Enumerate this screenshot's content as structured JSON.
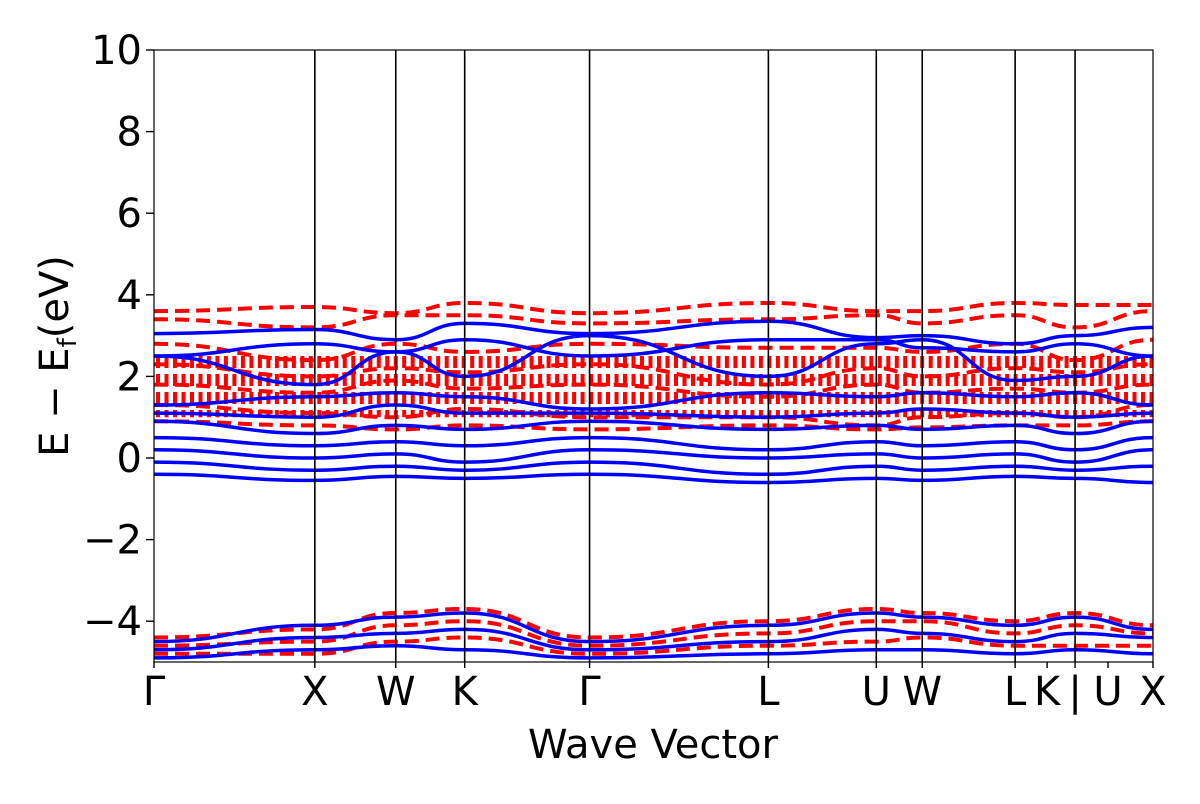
{
  "chart_data": {
    "type": "line",
    "title": "",
    "xlabel": "Wave Vector",
    "ylabel_main": "E − E",
    "ylabel_sub": "f",
    "ylabel_unit": "(eV)",
    "ylim": [
      -5,
      10
    ],
    "yticks": [
      -4,
      -2,
      0,
      2,
      4,
      6,
      8,
      10
    ],
    "ytick_labels": [
      "−4",
      "−2",
      "0",
      "2",
      "4",
      "6",
      "8",
      "10"
    ],
    "x_range": [
      0,
      1
    ],
    "kpoint_ticks": [
      {
        "label": "Γ",
        "x": 0.0
      },
      {
        "label": "X",
        "x": 0.161
      },
      {
        "label": "W",
        "x": 0.242
      },
      {
        "label": "K",
        "x": 0.311
      },
      {
        "label": "Γ",
        "x": 0.436
      },
      {
        "label": "L",
        "x": 0.615
      },
      {
        "label": "U",
        "x": 0.723
      },
      {
        "label": "W",
        "x": 0.769
      },
      {
        "label": "L",
        "x": 0.862
      },
      {
        "label": "K",
        "x": 0.894
      },
      {
        "label": "|",
        "x": 0.922
      },
      {
        "label": "U",
        "x": 0.955
      },
      {
        "label": "X",
        "x": 1.0
      }
    ],
    "vertical_lines_x": [
      0.161,
      0.242,
      0.311,
      0.436,
      0.615,
      0.723,
      0.769,
      0.862,
      0.922
    ],
    "series": [
      {
        "style": "dashed",
        "color": "#ff0000",
        "bands": [
          {
            "x": [
              0,
              0.161,
              0.242,
              0.311,
              0.436,
              0.615,
              0.723,
              0.769,
              0.862,
              0.922,
              1.0
            ],
            "y": [
              3.6,
              3.7,
              3.55,
              3.8,
              3.55,
              3.8,
              3.6,
              3.6,
              3.8,
              3.75,
              3.75
            ]
          },
          {
            "x": [
              0,
              0.161,
              0.242,
              0.311,
              0.436,
              0.615,
              0.723,
              0.769,
              0.862,
              0.922,
              1.0
            ],
            "y": [
              3.4,
              3.2,
              3.5,
              3.5,
              3.3,
              3.4,
              3.5,
              3.3,
              3.5,
              3.2,
              3.6
            ]
          },
          {
            "x": [
              0,
              0.161,
              0.242,
              0.311,
              0.436,
              0.615,
              0.723,
              0.769,
              0.862,
              0.922,
              1.0
            ],
            "y": [
              2.8,
              2.4,
              2.8,
              2.6,
              2.8,
              2.7,
              2.7,
              2.6,
              2.8,
              2.4,
              2.9
            ]
          },
          {
            "x": [
              0,
              0.161,
              0.242,
              0.311,
              0.436,
              0.615,
              0.723,
              0.769,
              0.862,
              0.922,
              1.0
            ],
            "y": [
              2.3,
              2.0,
              2.2,
              2.1,
              2.3,
              1.8,
              2.2,
              2.0,
              2.2,
              2.1,
              2.3
            ]
          },
          {
            "x": [
              0,
              0.161,
              0.242,
              0.311,
              0.436,
              0.615,
              0.723,
              0.769,
              0.862,
              0.922,
              1.0
            ],
            "y": [
              1.8,
              1.6,
              1.9,
              1.7,
              1.8,
              1.5,
              1.8,
              1.6,
              1.7,
              1.6,
              1.8
            ]
          },
          {
            "x": [
              0,
              0.161,
              0.242,
              0.311,
              0.436,
              0.615,
              0.723,
              0.769,
              0.862,
              0.922,
              1.0
            ],
            "y": [
              1.3,
              1.1,
              1.0,
              1.2,
              1.0,
              1.0,
              0.8,
              1.0,
              1.1,
              1.0,
              1.3
            ]
          },
          {
            "x": [
              0,
              0.161,
              0.242,
              0.311,
              0.436,
              0.615,
              0.723,
              0.769,
              0.862,
              0.922,
              1.0
            ],
            "y": [
              0.9,
              0.8,
              0.7,
              0.8,
              0.7,
              0.8,
              0.7,
              0.75,
              0.8,
              0.8,
              0.9
            ]
          },
          {
            "x": [
              0,
              0.161,
              0.242,
              0.311,
              0.436,
              0.615,
              0.723,
              0.769,
              0.862,
              0.922,
              1.0
            ],
            "y": [
              -4.4,
              -4.2,
              -3.8,
              -3.7,
              -4.4,
              -4.0,
              -3.7,
              -3.8,
              -4.0,
              -3.8,
              -4.1
            ]
          },
          {
            "x": [
              0,
              0.161,
              0.242,
              0.311,
              0.436,
              0.615,
              0.723,
              0.769,
              0.862,
              0.922,
              1.0
            ],
            "y": [
              -4.6,
              -4.5,
              -4.1,
              -4.0,
              -4.6,
              -4.3,
              -4.0,
              -4.0,
              -4.3,
              -4.1,
              -4.3
            ]
          },
          {
            "x": [
              0,
              0.161,
              0.242,
              0.311,
              0.436,
              0.615,
              0.723,
              0.769,
              0.862,
              0.922,
              1.0
            ],
            "y": [
              -4.8,
              -4.8,
              -4.5,
              -4.4,
              -4.8,
              -4.6,
              -4.5,
              -4.4,
              -4.6,
              -4.6,
              -4.6
            ]
          }
        ]
      },
      {
        "style": "solid",
        "color": "#0000ff",
        "bands": [
          {
            "x": [
              0,
              0.161,
              0.242,
              0.311,
              0.436,
              0.615,
              0.723,
              0.769,
              0.862,
              0.922,
              1.0
            ],
            "y": [
              3.05,
              3.15,
              2.9,
              3.3,
              3.05,
              3.35,
              2.95,
              3.0,
              2.8,
              3.0,
              3.2
            ]
          },
          {
            "x": [
              0,
              0.161,
              0.242,
              0.311,
              0.436,
              0.615,
              0.723,
              0.769,
              0.862,
              0.922,
              1.0
            ],
            "y": [
              2.5,
              2.8,
              2.6,
              2.9,
              2.5,
              2.9,
              2.9,
              2.7,
              2.6,
              2.8,
              2.5
            ]
          },
          {
            "x": [
              0,
              0.161,
              0.242,
              0.311,
              0.436,
              0.615,
              0.723,
              0.769,
              0.862,
              0.922,
              1.0
            ],
            "y": [
              2.5,
              1.8,
              2.6,
              2.0,
              3.0,
              2.0,
              2.8,
              2.9,
              1.9,
              2.0,
              2.5
            ]
          },
          {
            "x": [
              0,
              0.161,
              0.242,
              0.311,
              0.436,
              0.615,
              0.723,
              0.769,
              0.862,
              0.922,
              1.0
            ],
            "y": [
              1.3,
              1.5,
              1.6,
              1.5,
              1.2,
              1.6,
              1.5,
              1.6,
              1.5,
              1.6,
              1.3
            ]
          },
          {
            "x": [
              0,
              0.161,
              0.242,
              0.311,
              0.436,
              0.615,
              0.723,
              0.769,
              0.862,
              0.922,
              1.0
            ],
            "y": [
              1.1,
              1.0,
              1.3,
              1.1,
              1.1,
              1.0,
              1.1,
              1.2,
              1.1,
              1.0,
              1.1
            ]
          },
          {
            "x": [
              0,
              0.161,
              0.242,
              0.311,
              0.436,
              0.615,
              0.723,
              0.769,
              0.862,
              0.922,
              1.0
            ],
            "y": [
              0.9,
              0.6,
              0.8,
              0.7,
              0.9,
              0.7,
              0.8,
              0.7,
              0.8,
              0.6,
              0.9
            ]
          },
          {
            "x": [
              0,
              0.161,
              0.242,
              0.311,
              0.436,
              0.615,
              0.723,
              0.769,
              0.862,
              0.922,
              1.0
            ],
            "y": [
              0.5,
              0.3,
              0.4,
              0.3,
              0.5,
              0.2,
              0.4,
              0.3,
              0.4,
              0.2,
              0.5
            ]
          },
          {
            "x": [
              0,
              0.161,
              0.242,
              0.311,
              0.436,
              0.615,
              0.723,
              0.769,
              0.862,
              0.922,
              1.0
            ],
            "y": [
              0.2,
              0.0,
              0.1,
              -0.1,
              0.2,
              0.0,
              0.1,
              0.0,
              0.1,
              -0.1,
              0.2
            ]
          },
          {
            "x": [
              0,
              0.161,
              0.242,
              0.311,
              0.436,
              0.615,
              0.723,
              0.769,
              0.862,
              0.922,
              1.0
            ],
            "y": [
              -0.1,
              -0.3,
              -0.2,
              -0.3,
              -0.1,
              -0.4,
              -0.2,
              -0.3,
              -0.2,
              -0.3,
              -0.2
            ]
          },
          {
            "x": [
              0,
              0.161,
              0.242,
              0.311,
              0.436,
              0.615,
              0.723,
              0.769,
              0.862,
              0.922,
              1.0
            ],
            "y": [
              -0.4,
              -0.55,
              -0.45,
              -0.5,
              -0.4,
              -0.6,
              -0.5,
              -0.55,
              -0.45,
              -0.5,
              -0.6
            ]
          },
          {
            "x": [
              0,
              0.161,
              0.242,
              0.311,
              0.436,
              0.615,
              0.723,
              0.769,
              0.862,
              0.922,
              1.0
            ],
            "y": [
              -4.5,
              -4.1,
              -3.9,
              -3.8,
              -4.5,
              -4.1,
              -3.8,
              -3.9,
              -4.1,
              -3.9,
              -4.2
            ]
          },
          {
            "x": [
              0,
              0.161,
              0.242,
              0.311,
              0.436,
              0.615,
              0.723,
              0.769,
              0.862,
              0.922,
              1.0
            ],
            "y": [
              -4.7,
              -4.4,
              -4.3,
              -4.2,
              -4.7,
              -4.5,
              -4.2,
              -4.3,
              -4.5,
              -4.3,
              -4.4
            ]
          },
          {
            "x": [
              0,
              0.161,
              0.242,
              0.311,
              0.436,
              0.615,
              0.723,
              0.769,
              0.862,
              0.922,
              1.0
            ],
            "y": [
              -4.9,
              -4.7,
              -4.6,
              -4.7,
              -4.9,
              -4.8,
              -4.7,
              -4.7,
              -4.8,
              -4.7,
              -4.8
            ]
          }
        ]
      }
    ],
    "red_fill_band": {
      "ymin": 1.0,
      "ymax": 2.5,
      "x": [
        0,
        0.436,
        0.615,
        0.723,
        0.769,
        0.862,
        0.922,
        1.0
      ]
    },
    "grid": false,
    "legend": "none"
  }
}
